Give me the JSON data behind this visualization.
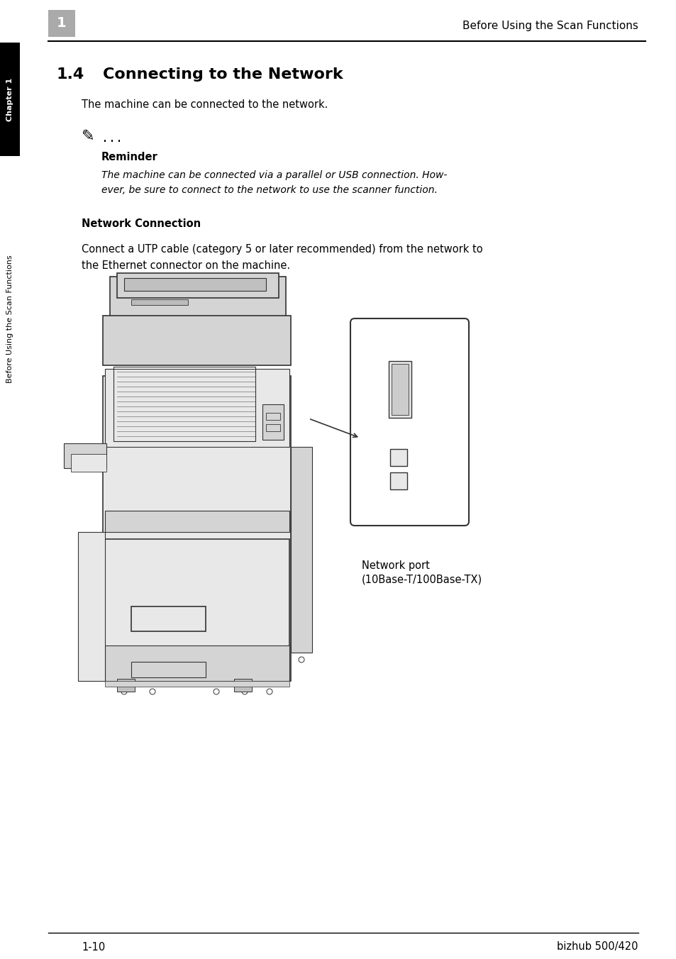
{
  "page_bg": "#ffffff",
  "header_tab_text": "1",
  "header_tab_bg": "#999999",
  "header_title": "Before Using the Scan Functions",
  "footer_left": "1-10",
  "footer_right": "bizhub 500/420",
  "sidebar_text1": "Chapter 1",
  "sidebar_text2": "Before Using the Scan Functions",
  "section_number": "1.4",
  "section_title": "Connecting to the Network",
  "body_text1": "The machine can be connected to the network.",
  "reminder_label": "Reminder",
  "reminder_line1": "The machine can be connected via a parallel or USB connection. How-",
  "reminder_line2": "ever, be sure to connect to the network to use the scanner function.",
  "network_conn_title": "Network Connection",
  "network_conn_line1": "Connect a UTP cable (category 5 or later recommended) from the network to",
  "network_conn_line2": "the Ethernet connector on the machine.",
  "annotation_line1": "Network port",
  "annotation_line2": "(10Base-T/100Base-TX)"
}
